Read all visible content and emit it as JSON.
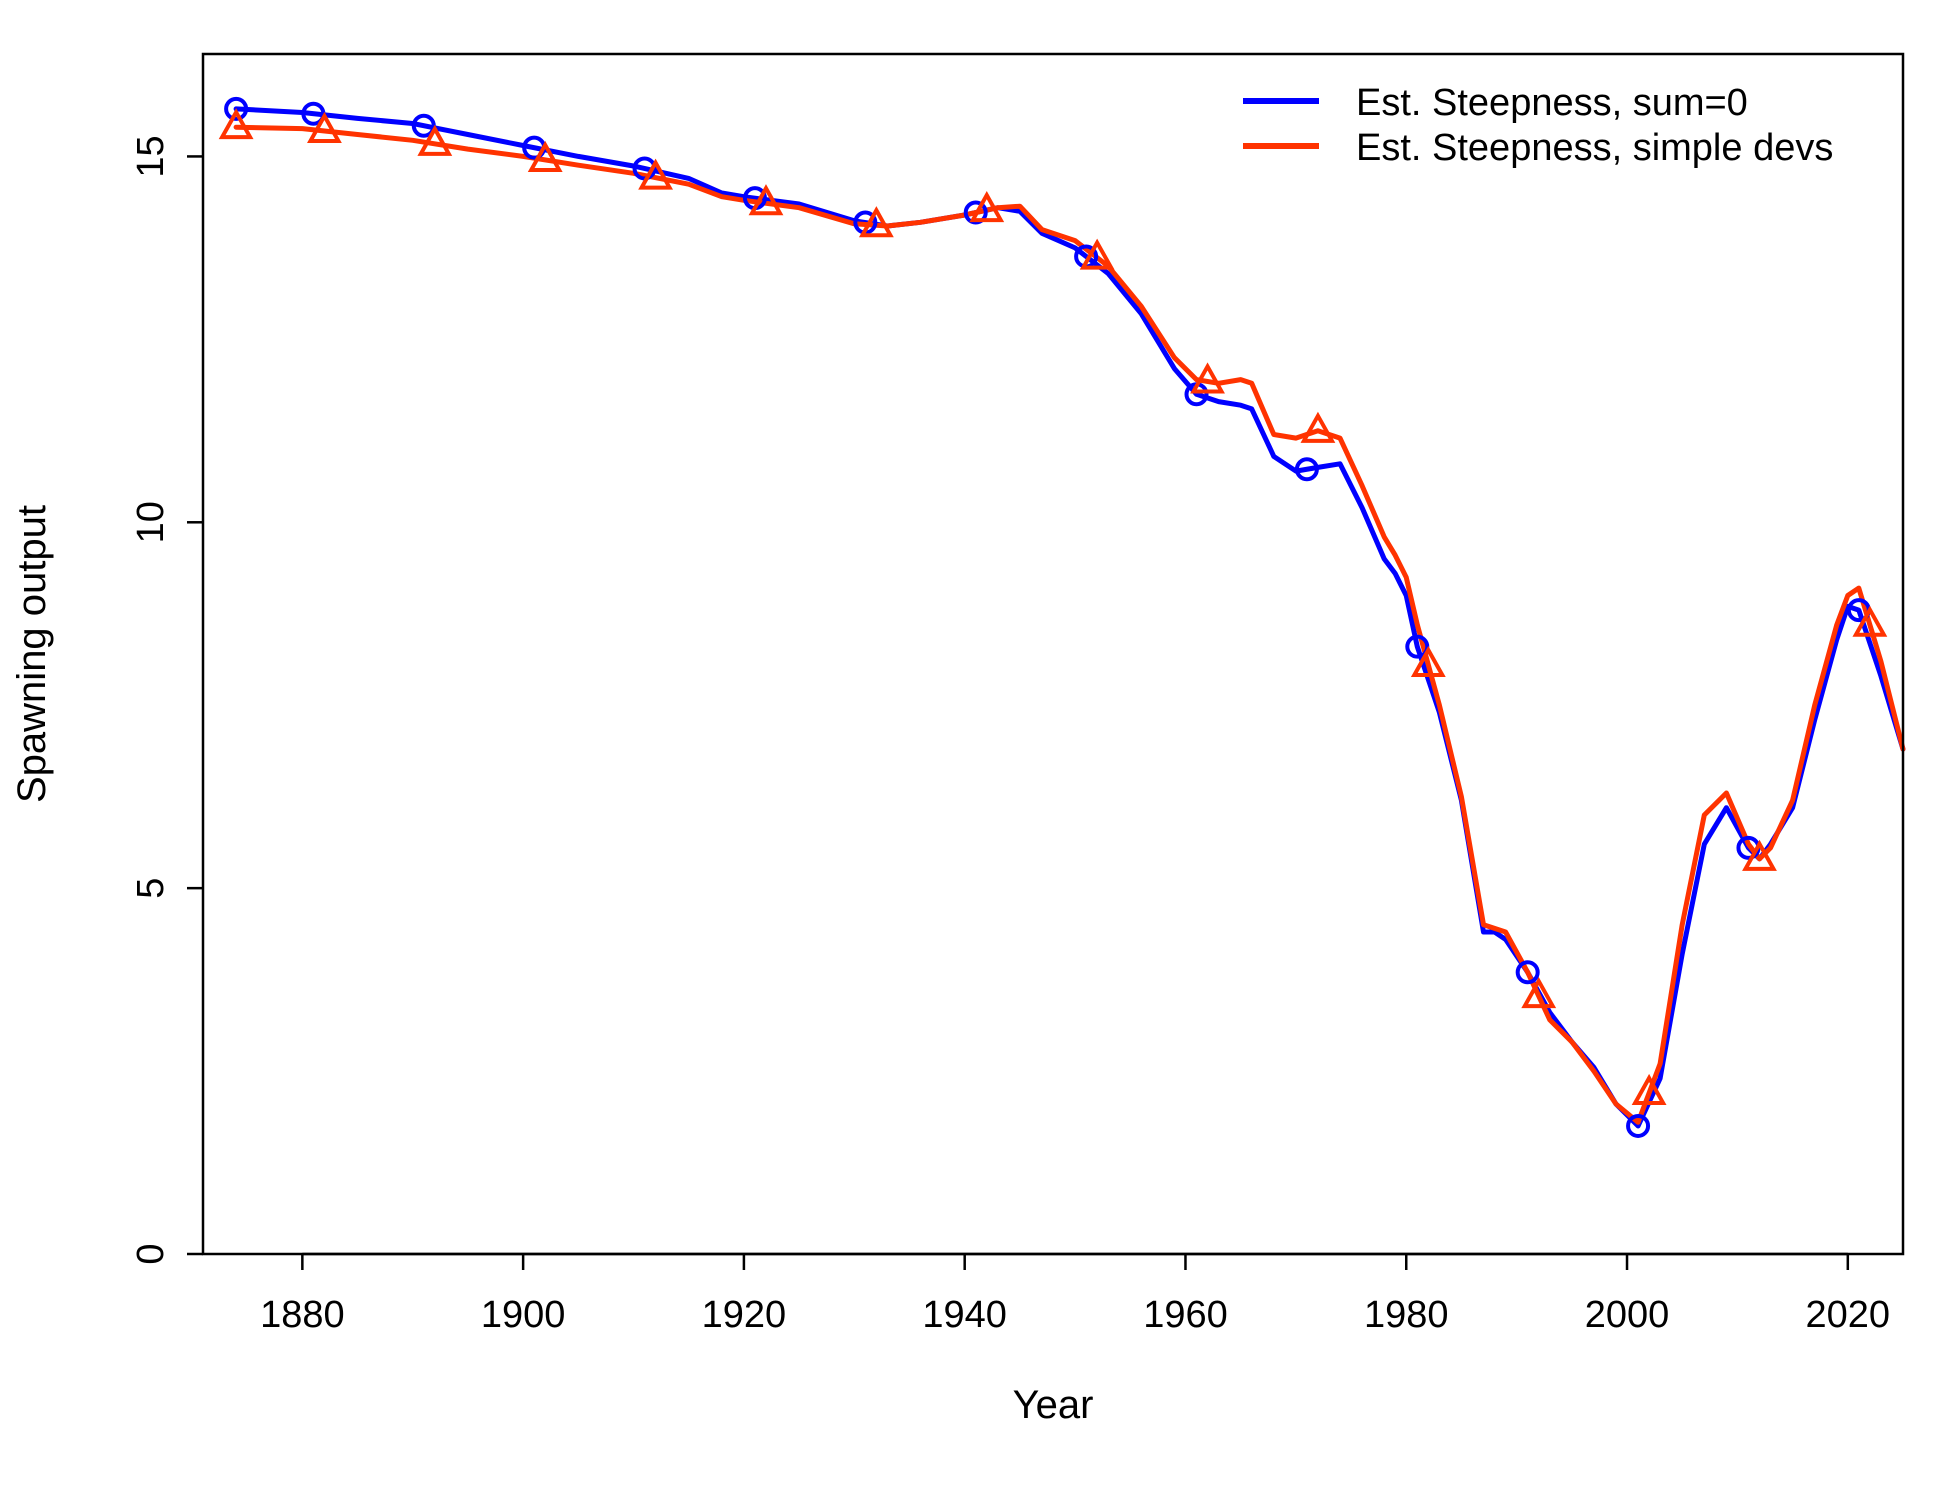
{
  "chart_data": {
    "type": "line",
    "title": "",
    "xlabel": "Year",
    "ylabel": "Spawning output",
    "xlim": [
      1871,
      2025
    ],
    "ylim": [
      0,
      16.4
    ],
    "x_ticks": [
      1880,
      1900,
      1920,
      1940,
      1960,
      1980,
      2000,
      2020
    ],
    "y_ticks": [
      0,
      5,
      10,
      15
    ],
    "grid": false,
    "legend_position": "top-right",
    "series": [
      {
        "name": "Est. Steepness, sum=0",
        "color": "#0000ff",
        "marker": "circle",
        "marker_x": [
          1874,
          1881,
          1891,
          1901,
          1911,
          1921,
          1931,
          1941,
          1951,
          1961,
          1971,
          1981,
          1991,
          2001,
          2011,
          2021
        ],
        "x": [
          1874,
          1880,
          1885,
          1890,
          1895,
          1900,
          1905,
          1910,
          1915,
          1918,
          1920,
          1925,
          1930,
          1933,
          1936,
          1940,
          1943,
          1945,
          1947,
          1950,
          1953,
          1956,
          1959,
          1961,
          1963,
          1965,
          1966,
          1968,
          1970,
          1972,
          1974,
          1976,
          1978,
          1979,
          1980,
          1981,
          1983,
          1985,
          1987,
          1988,
          1989,
          1991,
          1993,
          1995,
          1997,
          1999,
          2001,
          2003,
          2005,
          2007,
          2009,
          2011,
          2012,
          2013,
          2015,
          2017,
          2019,
          2020,
          2021,
          2023,
          2025
        ],
        "y": [
          15.65,
          15.6,
          15.52,
          15.45,
          15.3,
          15.15,
          15.0,
          14.87,
          14.7,
          14.5,
          14.45,
          14.35,
          14.12,
          14.05,
          14.1,
          14.2,
          14.3,
          14.25,
          13.95,
          13.75,
          13.4,
          12.85,
          12.1,
          11.75,
          11.65,
          11.6,
          11.55,
          10.9,
          10.7,
          10.75,
          10.8,
          10.2,
          9.5,
          9.3,
          9.0,
          8.3,
          7.4,
          6.2,
          4.4,
          4.4,
          4.3,
          3.85,
          3.3,
          2.9,
          2.55,
          2.05,
          1.75,
          2.4,
          4.1,
          5.6,
          6.1,
          5.55,
          5.4,
          5.6,
          6.1,
          7.3,
          8.4,
          8.85,
          8.8,
          7.9,
          6.9
        ]
      },
      {
        "name": "Est. Steepness, simple devs",
        "color": "#ff3300",
        "marker": "triangle",
        "marker_x": [
          1874,
          1882,
          1892,
          1902,
          1912,
          1922,
          1932,
          1942,
          1952,
          1962,
          1972,
          1982,
          1992,
          2002,
          2012,
          2022
        ],
        "x": [
          1874,
          1880,
          1885,
          1890,
          1895,
          1900,
          1905,
          1910,
          1915,
          1918,
          1920,
          1925,
          1930,
          1933,
          1936,
          1940,
          1943,
          1945,
          1947,
          1950,
          1953,
          1956,
          1959,
          1961,
          1963,
          1965,
          1966,
          1968,
          1970,
          1972,
          1974,
          1976,
          1978,
          1979,
          1980,
          1981,
          1983,
          1985,
          1987,
          1988,
          1989,
          1991,
          1993,
          1995,
          1997,
          1999,
          2001,
          2003,
          2005,
          2007,
          2009,
          2011,
          2012,
          2013,
          2015,
          2017,
          2019,
          2020,
          2021,
          2023,
          2025
        ],
        "y": [
          15.4,
          15.38,
          15.3,
          15.22,
          15.1,
          15.0,
          14.88,
          14.77,
          14.62,
          14.45,
          14.4,
          14.3,
          14.08,
          14.05,
          14.1,
          14.2,
          14.3,
          14.32,
          14.0,
          13.85,
          13.5,
          12.95,
          12.25,
          11.95,
          11.9,
          11.95,
          11.9,
          11.2,
          11.15,
          11.25,
          11.15,
          10.5,
          9.8,
          9.55,
          9.25,
          8.6,
          7.5,
          6.25,
          4.5,
          4.45,
          4.4,
          3.85,
          3.2,
          2.9,
          2.5,
          2.05,
          1.8,
          2.6,
          4.5,
          6.0,
          6.3,
          5.6,
          5.4,
          5.55,
          6.2,
          7.5,
          8.6,
          9.0,
          9.1,
          8.1,
          6.9
        ]
      }
    ]
  }
}
